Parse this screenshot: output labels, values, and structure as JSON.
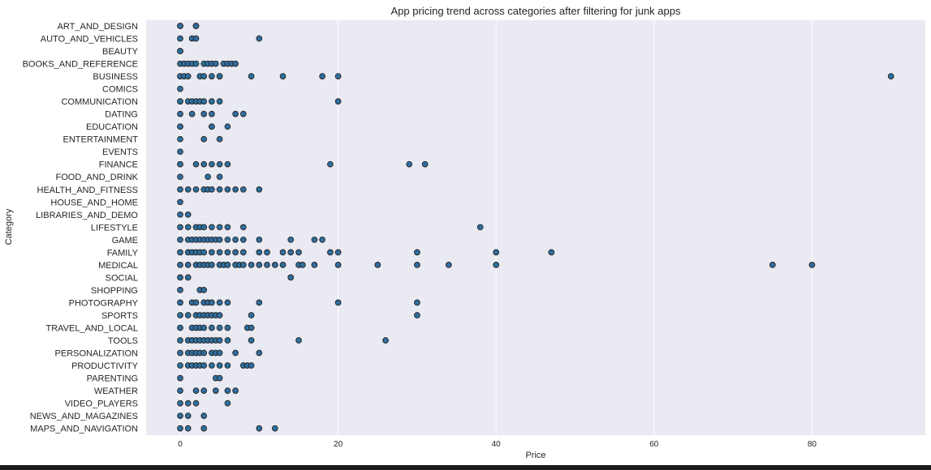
{
  "chart_data": {
    "type": "scatter",
    "title": "App pricing trend across categories after filtering for junk apps",
    "xlabel": "Price",
    "ylabel": "Category",
    "xlim": [
      -4,
      94
    ],
    "xticks": [
      0,
      20,
      40,
      60,
      80
    ],
    "grid": true,
    "categories": [
      "ART_AND_DESIGN",
      "AUTO_AND_VEHICLES",
      "BEAUTY",
      "BOOKS_AND_REFERENCE",
      "BUSINESS",
      "COMICS",
      "COMMUNICATION",
      "DATING",
      "EDUCATION",
      "ENTERTAINMENT",
      "EVENTS",
      "FINANCE",
      "FOOD_AND_DRINK",
      "HEALTH_AND_FITNESS",
      "HOUSE_AND_HOME",
      "LIBRARIES_AND_DEMO",
      "LIFESTYLE",
      "GAME",
      "FAMILY",
      "MEDICAL",
      "SOCIAL",
      "SHOPPING",
      "PHOTOGRAPHY",
      "SPORTS",
      "TRAVEL_AND_LOCAL",
      "TOOLS",
      "PERSONALIZATION",
      "PRODUCTIVITY",
      "PARENTING",
      "WEATHER",
      "VIDEO_PLAYERS",
      "NEWS_AND_MAGAZINES",
      "MAPS_AND_NAVIGATION"
    ],
    "points": [
      {
        "category": "ART_AND_DESIGN",
        "prices": [
          0,
          0,
          2,
          2
        ]
      },
      {
        "category": "AUTO_AND_VEHICLES",
        "prices": [
          0,
          1.5,
          2,
          10
        ]
      },
      {
        "category": "BEAUTY",
        "prices": [
          0,
          0
        ]
      },
      {
        "category": "BOOKS_AND_REFERENCE",
        "prices": [
          0,
          0.5,
          1,
          1.5,
          2,
          3,
          3.5,
          4,
          4.5,
          5.5,
          6,
          6.5,
          7
        ]
      },
      {
        "category": "BUSINESS",
        "prices": [
          0,
          0.5,
          1,
          2.5,
          3,
          4,
          5,
          5,
          9,
          13,
          18,
          20,
          90
        ]
      },
      {
        "category": "COMICS",
        "prices": [
          0
        ]
      },
      {
        "category": "COMMUNICATION",
        "prices": [
          0,
          0,
          1,
          1.5,
          2,
          2.5,
          3,
          4,
          5,
          20
        ]
      },
      {
        "category": "DATING",
        "prices": [
          0,
          1.5,
          3,
          4,
          7,
          8
        ]
      },
      {
        "category": "EDUCATION",
        "prices": [
          0,
          0,
          4,
          4,
          6
        ]
      },
      {
        "category": "ENTERTAINMENT",
        "prices": [
          0,
          3,
          5
        ]
      },
      {
        "category": "EVENTS",
        "prices": [
          0
        ]
      },
      {
        "category": "FINANCE",
        "prices": [
          0,
          0,
          2,
          3,
          4,
          5,
          6,
          19,
          29,
          31
        ]
      },
      {
        "category": "FOOD_AND_DRINK",
        "prices": [
          0,
          3.5,
          5
        ]
      },
      {
        "category": "HEALTH_AND_FITNESS",
        "prices": [
          0,
          1,
          2,
          3,
          3.5,
          4,
          5,
          6,
          7,
          8,
          10
        ]
      },
      {
        "category": "HOUSE_AND_HOME",
        "prices": [
          0
        ]
      },
      {
        "category": "LIBRARIES_AND_DEMO",
        "prices": [
          0,
          1
        ]
      },
      {
        "category": "LIFESTYLE",
        "prices": [
          0,
          1,
          2,
          2.5,
          3,
          4,
          5,
          6,
          8,
          38
        ]
      },
      {
        "category": "GAME",
        "prices": [
          0,
          1,
          1.5,
          2,
          2.5,
          3,
          3.5,
          4,
          4.5,
          5,
          6,
          7,
          8,
          10,
          14,
          17,
          18
        ]
      },
      {
        "category": "FAMILY",
        "prices": [
          0,
          1,
          1.5,
          2,
          2.5,
          3,
          4,
          5,
          6,
          7,
          8,
          10,
          11,
          13,
          14,
          15,
          19,
          20,
          30,
          40,
          47
        ]
      },
      {
        "category": "MEDICAL",
        "prices": [
          0,
          1,
          2,
          2.5,
          3,
          3.5,
          4,
          5,
          5.5,
          6,
          7,
          7.5,
          8,
          9,
          10,
          11,
          12,
          13,
          15,
          15.5,
          17,
          20,
          25,
          30,
          34,
          40,
          75,
          80
        ]
      },
      {
        "category": "SOCIAL",
        "prices": [
          0,
          1,
          14
        ]
      },
      {
        "category": "SHOPPING",
        "prices": [
          0,
          2.5,
          3
        ]
      },
      {
        "category": "PHOTOGRAPHY",
        "prices": [
          0,
          1.5,
          2,
          3,
          3.5,
          4,
          5,
          6,
          10,
          20,
          30
        ]
      },
      {
        "category": "SPORTS",
        "prices": [
          0,
          1,
          2,
          2.5,
          3,
          3.5,
          4,
          4.5,
          5,
          9,
          30
        ]
      },
      {
        "category": "TRAVEL_AND_LOCAL",
        "prices": [
          0,
          1.5,
          2,
          2.5,
          3,
          4,
          5,
          6,
          8.5,
          9
        ]
      },
      {
        "category": "TOOLS",
        "prices": [
          0,
          1,
          1.5,
          2,
          2.5,
          3,
          3.5,
          4,
          4.5,
          5,
          6,
          9,
          15,
          26
        ]
      },
      {
        "category": "PERSONALIZATION",
        "prices": [
          0,
          1,
          1.5,
          2,
          2.5,
          3,
          4,
          4.5,
          5,
          7,
          10
        ]
      },
      {
        "category": "PRODUCTIVITY",
        "prices": [
          0,
          1,
          1.5,
          2,
          2.5,
          3,
          4,
          5,
          6,
          8,
          8.5,
          9
        ]
      },
      {
        "category": "PARENTING",
        "prices": [
          0,
          4.5,
          5
        ]
      },
      {
        "category": "WEATHER",
        "prices": [
          0,
          2,
          3,
          4.5,
          6,
          7
        ]
      },
      {
        "category": "VIDEO_PLAYERS",
        "prices": [
          0,
          1,
          2,
          6
        ]
      },
      {
        "category": "NEWS_AND_MAGAZINES",
        "prices": [
          0,
          1,
          3
        ]
      },
      {
        "category": "MAPS_AND_NAVIGATION",
        "prices": [
          0,
          1,
          3,
          10,
          12
        ]
      }
    ]
  },
  "colors": {
    "plot_background": "#eaeaf2",
    "grid": "#ffffff",
    "marker_fill": "#2f6e9e",
    "marker_edge": "#222222",
    "text": "#262626"
  }
}
